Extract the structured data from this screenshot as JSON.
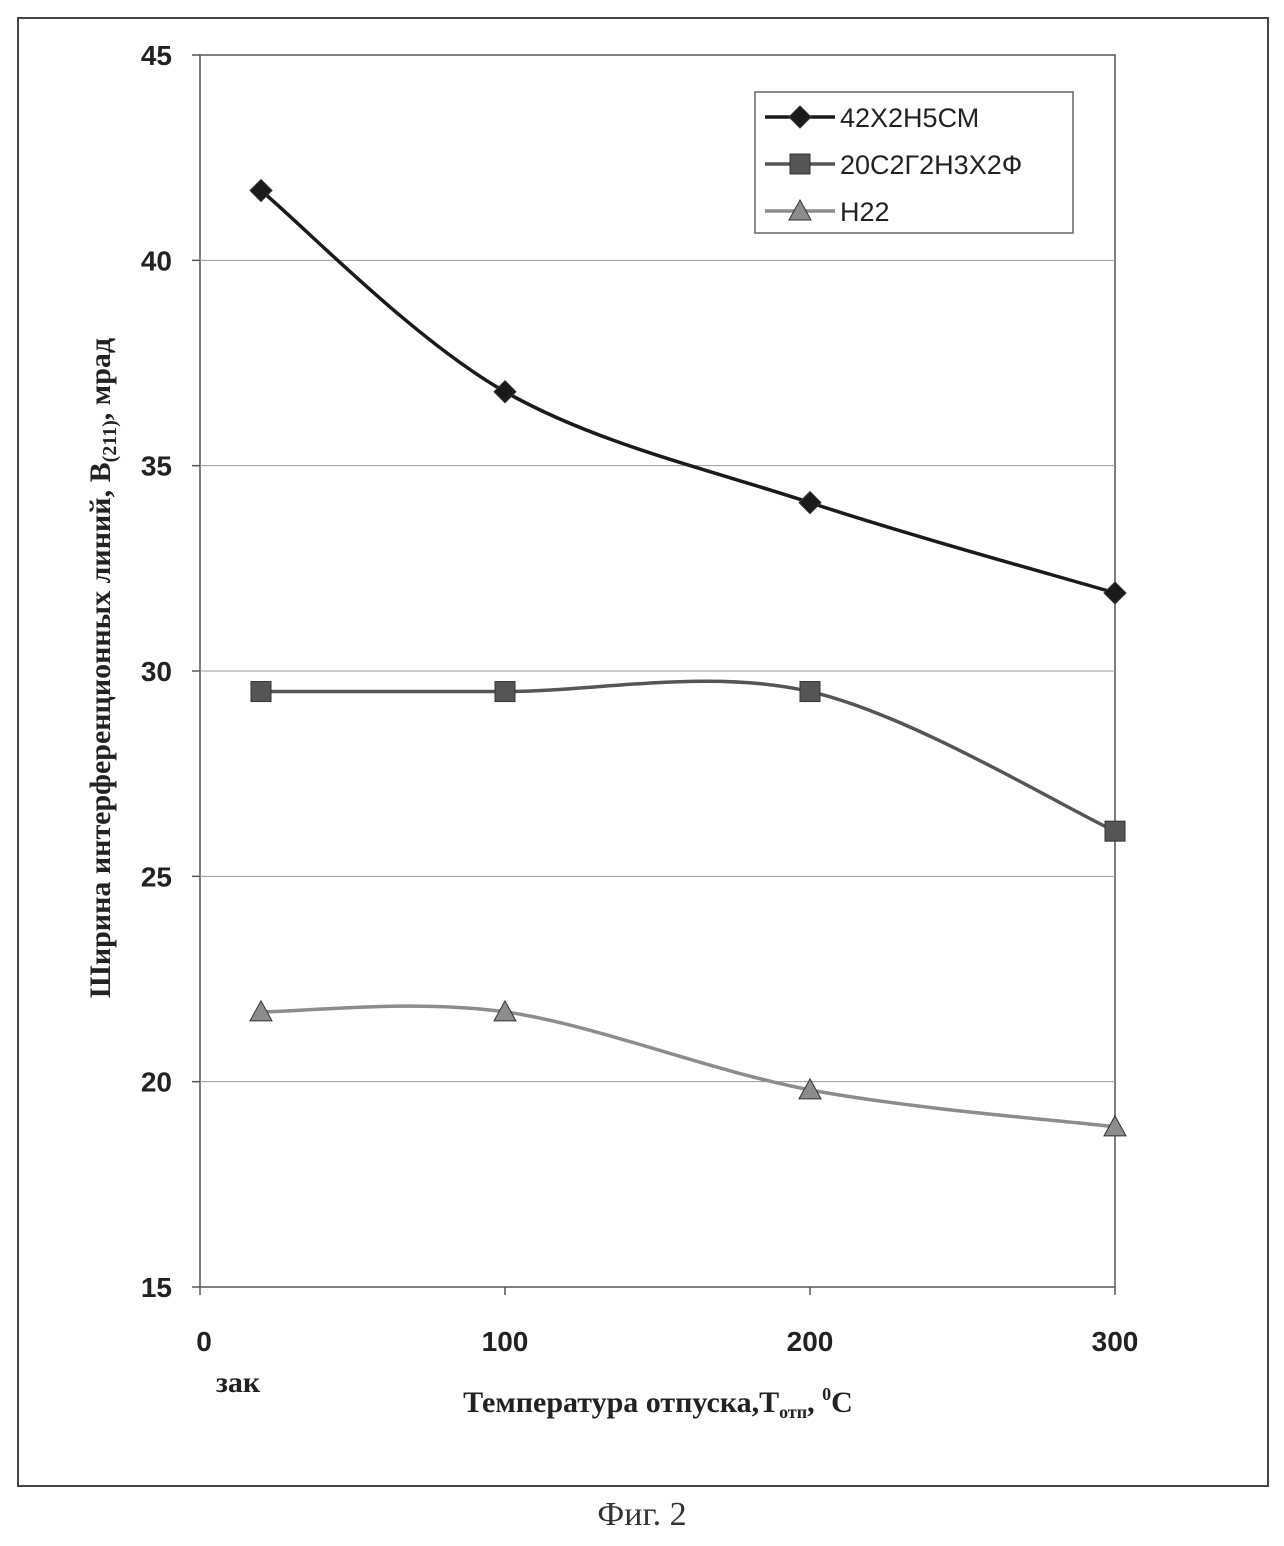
{
  "chart_data": {
    "type": "line",
    "x": [
      20,
      100,
      200,
      300
    ],
    "x_tick_labels": [
      "0",
      "100",
      "200",
      "300"
    ],
    "x_extra_label": "зак",
    "xlim": [
      0,
      300
    ],
    "ylim": [
      15,
      45
    ],
    "y_ticks": [
      15,
      20,
      25,
      30,
      35,
      40,
      45
    ],
    "ylabel_main": "Ширина интерференционных линий, В",
    "ylabel_sub": "(211)",
    "ylabel_tail": ", мрад",
    "xlabel_main": "Температура отпуска,Т",
    "xlabel_sub": "отп",
    "xlabel_sep": ", ",
    "xlabel_sup": "0",
    "xlabel_unit": "С",
    "grid": "horizontal",
    "legend_position": "top-right",
    "series": [
      {
        "name": "42Х2Н5СМ",
        "marker": "diamond",
        "color": "#1a1a1a",
        "values": [
          41.7,
          36.8,
          34.1,
          31.9
        ]
      },
      {
        "name": "20С2Г2Н3Х2Ф",
        "marker": "square",
        "color": "#555555",
        "values": [
          29.5,
          29.5,
          29.5,
          26.1
        ]
      },
      {
        "name": "Н22",
        "marker": "triangle",
        "color": "#8c8c8c",
        "values": [
          21.7,
          21.7,
          19.8,
          18.9
        ]
      }
    ]
  },
  "caption": "Фиг. 2"
}
